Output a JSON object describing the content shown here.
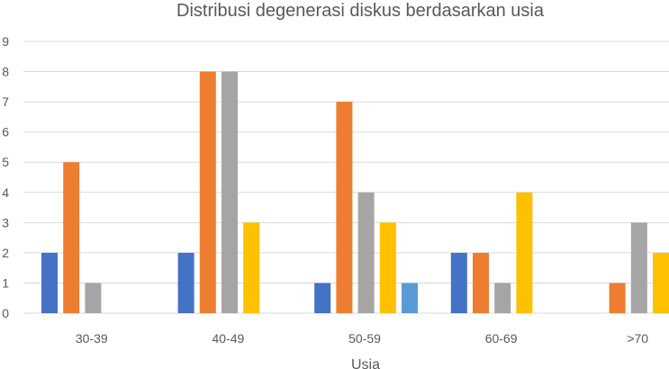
{
  "chart_data": {
    "type": "bar",
    "title": "Distribusi degenerasi diskus berdasarkan usia",
    "xlabel": "Usia",
    "ylabel": "",
    "categories": [
      "30-39",
      "40-49",
      "50-59",
      "60-69",
      ">70"
    ],
    "ylim": [
      0,
      9
    ],
    "y_ticks": [
      "0",
      "1",
      "2",
      "3",
      "4",
      "5",
      "6",
      "7",
      "8",
      "9"
    ],
    "grid": true,
    "legend": "none",
    "series": [
      {
        "color": "#4472C4",
        "values": [
          2,
          2,
          1,
          2,
          0
        ]
      },
      {
        "color": "#ED7D31",
        "values": [
          5,
          8,
          7,
          2,
          1
        ]
      },
      {
        "color": "#A5A5A5",
        "values": [
          1,
          8,
          4,
          1,
          3
        ]
      },
      {
        "color": "#FFC000",
        "values": [
          0,
          3,
          3,
          4,
          2
        ]
      },
      {
        "color": "#5B9BD5",
        "values": [
          0,
          0,
          1,
          0,
          0
        ]
      }
    ]
  }
}
